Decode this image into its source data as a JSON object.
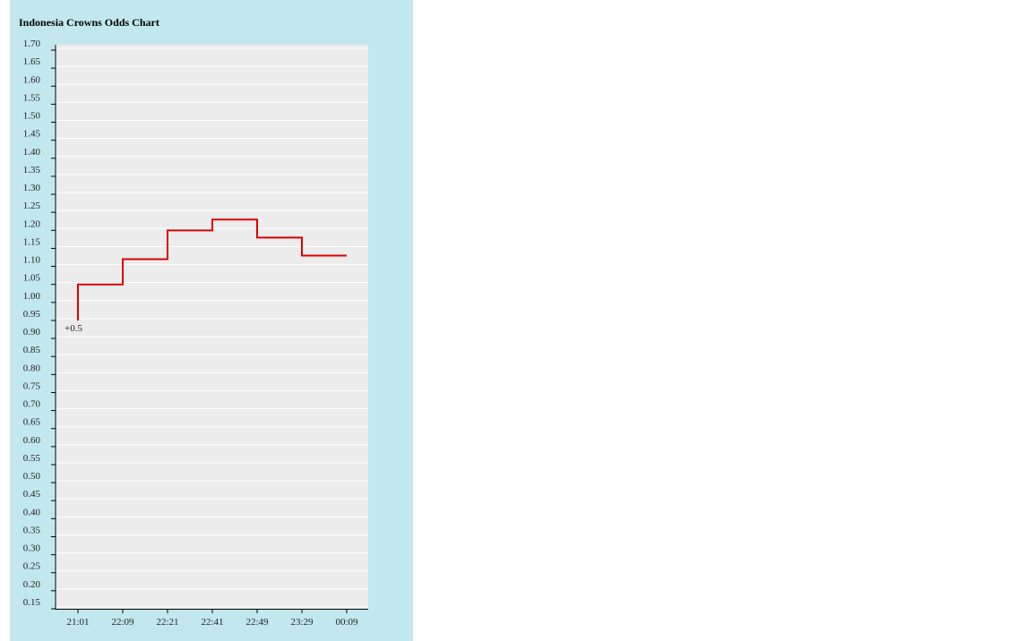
{
  "chart_data": {
    "type": "line",
    "title": "Indonesia Crowns Odds Chart",
    "x_categories": [
      "21:01",
      "22:09",
      "22:21",
      "22:41",
      "22:49",
      "23:29",
      "00:09"
    ],
    "y_ticks": [
      "1.70",
      "1.65",
      "1.60",
      "1.55",
      "1.50",
      "1.45",
      "1.40",
      "1.35",
      "1.30",
      "1.25",
      "1.20",
      "1.15",
      "1.10",
      "1.05",
      "1.00",
      "0.95",
      "0.90",
      "0.85",
      "0.80",
      "0.75",
      "0.70",
      "0.65",
      "0.60",
      "0.55",
      "0.50",
      "0.45",
      "0.40",
      "0.35",
      "0.30",
      "0.25",
      "0.20",
      "0.15"
    ],
    "ylim": [
      0.15,
      1.7
    ],
    "step": true,
    "grid": true,
    "series": [
      {
        "color": "#dd0000",
        "start_value": 0.94,
        "values": [
          1.04,
          1.11,
          1.19,
          1.22,
          1.17,
          1.12
        ]
      }
    ],
    "annotations": [
      {
        "text": "+0.5",
        "x": "21:01",
        "y": 0.94
      }
    ],
    "plot_background": "#ececec",
    "panel_background": "#c3e7ef"
  }
}
